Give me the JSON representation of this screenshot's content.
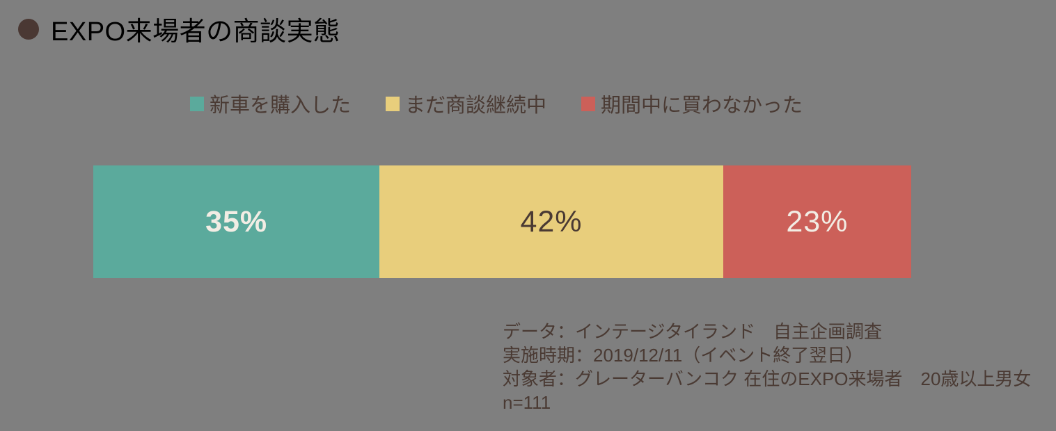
{
  "page": {
    "background": "#7F7F7F"
  },
  "header": {
    "title": "EXPO来場者の商談実態",
    "bullet_color": "#4A3833"
  },
  "chart_data": {
    "type": "bar",
    "orientation": "horizontal-stacked",
    "title": "EXPO来場者の商談実態",
    "unit": "percent",
    "total": 100,
    "legend_position": "top",
    "segments": [
      {
        "label": "新車を購入した",
        "value": 35,
        "value_label": "35%",
        "color": "#5BAA9C",
        "label_color": "#F2EDE4"
      },
      {
        "label": "まだ商談継続中",
        "value": 42,
        "value_label": "42%",
        "color": "#E8CE7C",
        "label_color": "#4A3A33"
      },
      {
        "label": "期間中に買わなかった",
        "value": 23,
        "value_label": "23%",
        "color": "#CC6059",
        "label_color": "#F2EDE4"
      }
    ]
  },
  "notes": {
    "text_color": "#4A3A33",
    "lines": [
      "データ：インテージタイランド　自主企画調査",
      "実施時期：2019/12/11（イベント終了翌日）",
      "対象者：グレーターバンコク 在住のEXPO来場者　20歳以上男女",
      "n=111"
    ]
  }
}
